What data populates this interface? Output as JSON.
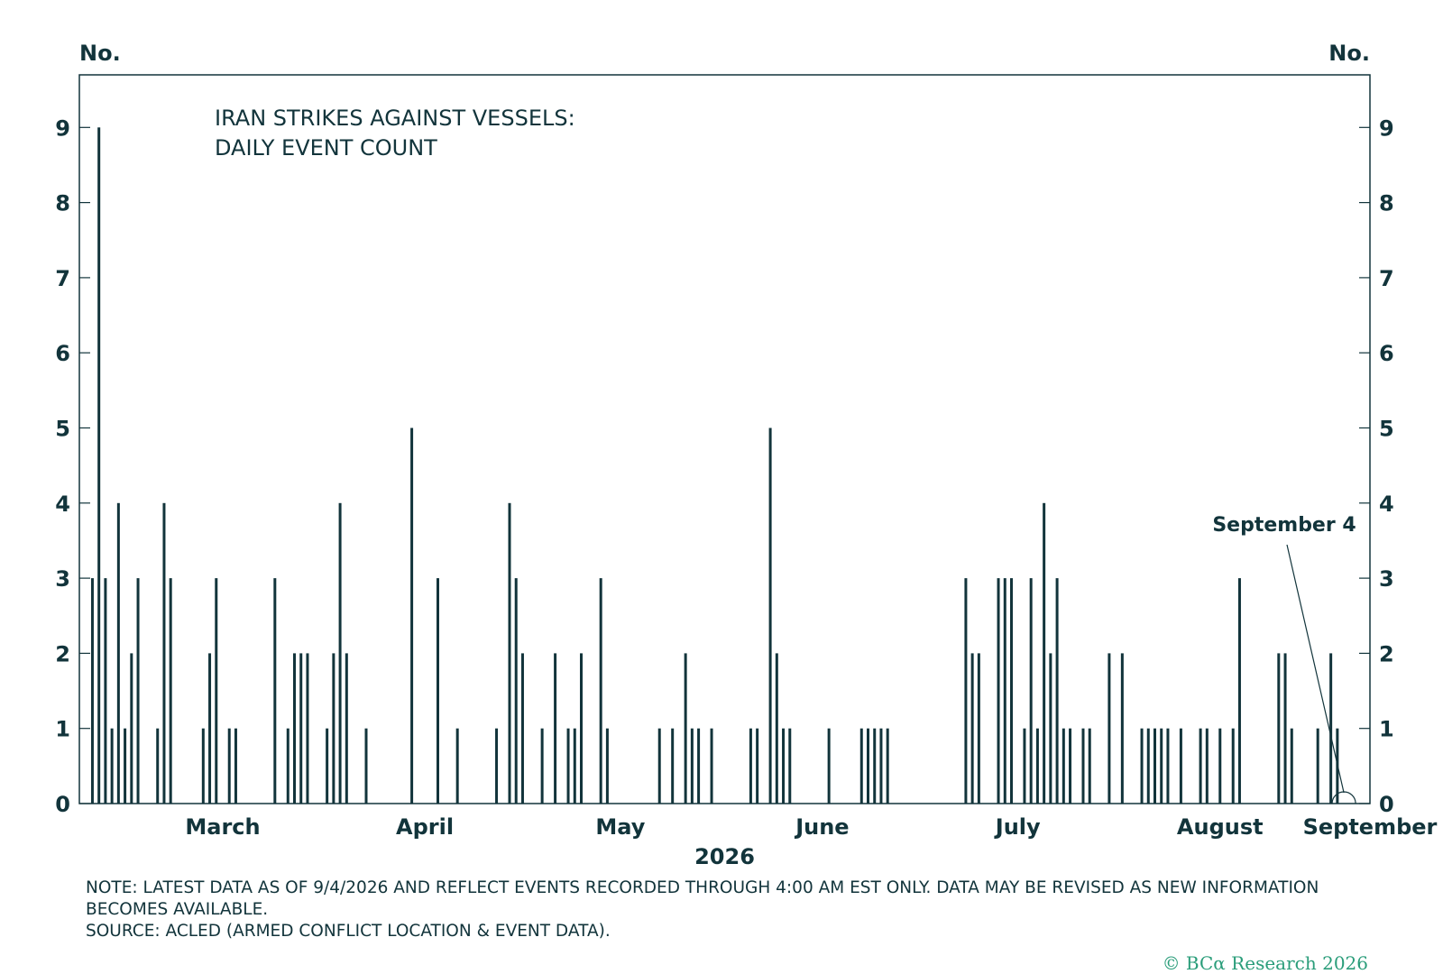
{
  "chart_data": {
    "type": "bar",
    "title_lines": [
      "IRAN STRIKES AGAINST VESSELS:",
      "DAILY EVENT COUNT"
    ],
    "y_unit_left": "No.",
    "y_unit_right": "No.",
    "xlabel": "2026",
    "ylim": [
      0,
      9.7
    ],
    "y_ticks": [
      0,
      1,
      2,
      3,
      4,
      5,
      6,
      7,
      8,
      9
    ],
    "x_start": "2026-02-22",
    "x_end": "2026-09-08",
    "month_labels": [
      {
        "label": "March",
        "date": "2026-03-16"
      },
      {
        "label": "April",
        "date": "2026-04-16"
      },
      {
        "label": "May",
        "date": "2026-05-16"
      },
      {
        "label": "June",
        "date": "2026-06-16"
      },
      {
        "label": "July",
        "date": "2026-07-16"
      },
      {
        "label": "August",
        "date": "2026-08-16"
      },
      {
        "label": "September",
        "date": "2026-09-08"
      }
    ],
    "annotation": {
      "label": "September 4",
      "date": "2026-09-04"
    },
    "series": [
      {
        "values": [
          [
            "2026-02-24",
            3
          ],
          [
            "2026-02-25",
            9
          ],
          [
            "2026-02-26",
            3
          ],
          [
            "2026-02-27",
            1
          ],
          [
            "2026-02-28",
            4
          ],
          [
            "2026-03-01",
            1
          ],
          [
            "2026-03-02",
            2
          ],
          [
            "2026-03-03",
            3
          ],
          [
            "2026-03-06",
            1
          ],
          [
            "2026-03-07",
            4
          ],
          [
            "2026-03-08",
            3
          ],
          [
            "2026-03-13",
            1
          ],
          [
            "2026-03-14",
            2
          ],
          [
            "2026-03-15",
            3
          ],
          [
            "2026-03-17",
            1
          ],
          [
            "2026-03-18",
            1
          ],
          [
            "2026-03-24",
            3
          ],
          [
            "2026-03-26",
            1
          ],
          [
            "2026-03-27",
            2
          ],
          [
            "2026-03-28",
            2
          ],
          [
            "2026-03-29",
            2
          ],
          [
            "2026-04-01",
            1
          ],
          [
            "2026-04-02",
            2
          ],
          [
            "2026-04-03",
            4
          ],
          [
            "2026-04-04",
            2
          ],
          [
            "2026-04-07",
            1
          ],
          [
            "2026-04-14",
            5
          ],
          [
            "2026-04-18",
            3
          ],
          [
            "2026-04-21",
            1
          ],
          [
            "2026-04-27",
            1
          ],
          [
            "2026-04-29",
            4
          ],
          [
            "2026-04-30",
            3
          ],
          [
            "2026-05-01",
            2
          ],
          [
            "2026-05-04",
            1
          ],
          [
            "2026-05-06",
            2
          ],
          [
            "2026-05-08",
            1
          ],
          [
            "2026-05-09",
            1
          ],
          [
            "2026-05-10",
            2
          ],
          [
            "2026-05-13",
            3
          ],
          [
            "2026-05-14",
            1
          ],
          [
            "2026-05-22",
            1
          ],
          [
            "2026-05-24",
            1
          ],
          [
            "2026-05-26",
            2
          ],
          [
            "2026-05-27",
            1
          ],
          [
            "2026-05-28",
            1
          ],
          [
            "2026-05-30",
            1
          ],
          [
            "2026-06-05",
            1
          ],
          [
            "2026-06-06",
            1
          ],
          [
            "2026-06-08",
            5
          ],
          [
            "2026-06-09",
            2
          ],
          [
            "2026-06-10",
            1
          ],
          [
            "2026-06-11",
            1
          ],
          [
            "2026-06-17",
            1
          ],
          [
            "2026-06-22",
            1
          ],
          [
            "2026-06-23",
            1
          ],
          [
            "2026-06-24",
            1
          ],
          [
            "2026-06-25",
            1
          ],
          [
            "2026-06-26",
            1
          ],
          [
            "2026-07-08",
            3
          ],
          [
            "2026-07-09",
            2
          ],
          [
            "2026-07-10",
            2
          ],
          [
            "2026-07-13",
            3
          ],
          [
            "2026-07-14",
            3
          ],
          [
            "2026-07-15",
            3
          ],
          [
            "2026-07-17",
            1
          ],
          [
            "2026-07-18",
            3
          ],
          [
            "2026-07-19",
            1
          ],
          [
            "2026-07-20",
            4
          ],
          [
            "2026-07-21",
            2
          ],
          [
            "2026-07-22",
            3
          ],
          [
            "2026-07-23",
            1
          ],
          [
            "2026-07-24",
            1
          ],
          [
            "2026-07-26",
            1
          ],
          [
            "2026-07-27",
            1
          ],
          [
            "2026-07-30",
            2
          ],
          [
            "2026-08-01",
            2
          ],
          [
            "2026-08-04",
            1
          ],
          [
            "2026-08-05",
            1
          ],
          [
            "2026-08-06",
            1
          ],
          [
            "2026-08-07",
            1
          ],
          [
            "2026-08-08",
            1
          ],
          [
            "2026-08-10",
            1
          ],
          [
            "2026-08-13",
            1
          ],
          [
            "2026-08-14",
            1
          ],
          [
            "2026-08-16",
            1
          ],
          [
            "2026-08-18",
            1
          ],
          [
            "2026-08-19",
            3
          ],
          [
            "2026-08-25",
            2
          ],
          [
            "2026-08-26",
            2
          ],
          [
            "2026-08-27",
            1
          ],
          [
            "2026-08-31",
            1
          ],
          [
            "2026-09-02",
            2
          ],
          [
            "2026-09-03",
            1
          ]
        ]
      }
    ]
  },
  "notes": {
    "note": "NOTE: LATEST DATA AS OF 9/4/2026 AND REFLECT EVENTS RECORDED THROUGH 4:00 AM EST ONLY. DATA MAY BE REVISED AS NEW INFORMATION BECOMES AVAILABLE.",
    "source": "SOURCE: ACLED (ARMED CONFLICT LOCATION & EVENT DATA)."
  },
  "copyright": "© BCα Research 2026",
  "colors": {
    "bar": "#12343b",
    "text": "#12343b",
    "copyright": "#2a9d7a"
  }
}
